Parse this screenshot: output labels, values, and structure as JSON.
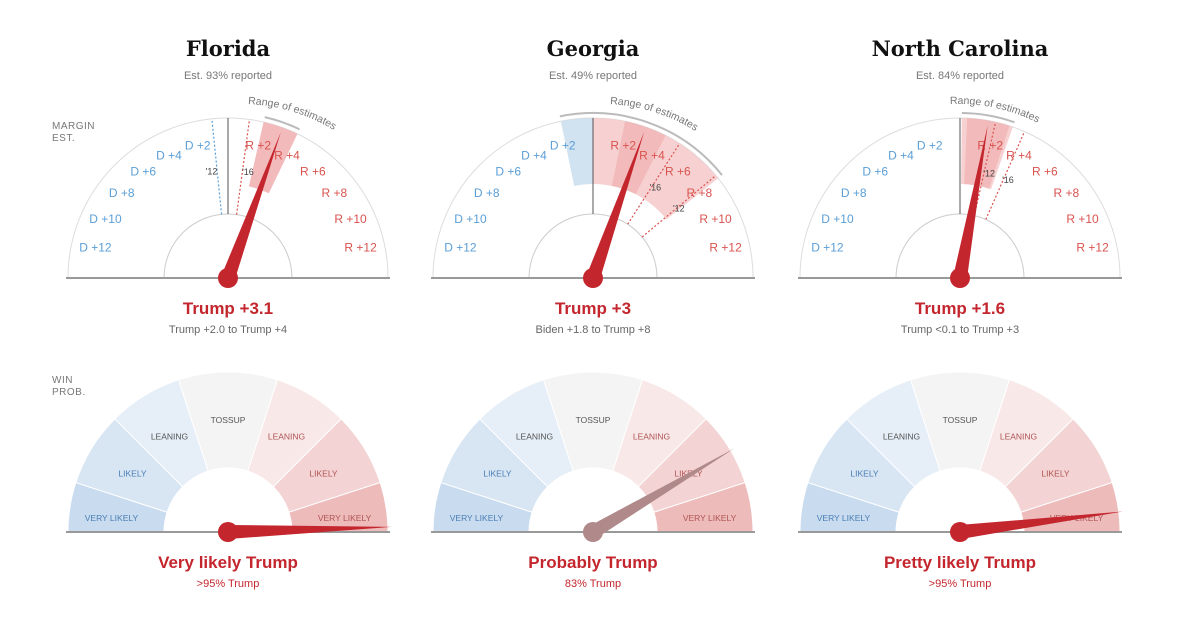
{
  "side_labels": {
    "margin": [
      "MARGIN",
      "EST."
    ],
    "win": [
      "WIN",
      "PROB."
    ]
  },
  "colors": {
    "trump_red": "#c4262e",
    "dem_blue": "#5a9ed6",
    "rep_red": "#d9534f",
    "neutral_needle": "#b08a8a",
    "axis_grey": "#999999"
  },
  "chart_data": [
    {
      "type": "gauge",
      "state": "Florida",
      "reported": "Est. 93% reported",
      "margin": {
        "tick_labels": {
          "dem": [
            "D +2",
            "D +4",
            "D +6",
            "D +8",
            "D +10",
            "D +12"
          ],
          "rep": [
            "R +2",
            "R +4",
            "R +6",
            "R +8",
            "R +10",
            "R +12"
          ]
        },
        "needle_value": 3.1,
        "range": [
          2.0,
          4.0
        ],
        "range_label": "Range of estimates",
        "prior_years": [
          {
            "label": "'12",
            "value": -0.9
          },
          {
            "label": "'16",
            "value": 1.2
          }
        ],
        "headline": "Trump +3.1",
        "subline": "Trump +2.0 to Trump +4"
      },
      "win_prob": {
        "segments": [
          "VERY LIKELY",
          "LIKELY",
          "LEANING",
          "TOSSUP",
          "LEANING",
          "LIKELY",
          "VERY LIKELY"
        ],
        "trump_prob": 0.99,
        "needle_color": "trump_red",
        "headline": "Very likely Trump",
        "subline": ">95% Trump"
      }
    },
    {
      "type": "gauge",
      "state": "Georgia",
      "reported": "Est. 49% reported",
      "margin": {
        "tick_labels": {
          "dem": [
            "D +2",
            "D +4",
            "D +6",
            "D +8",
            "D +10",
            "D +12"
          ],
          "rep": [
            "R +2",
            "R +4",
            "R +6",
            "R +8",
            "R +10",
            "R +12"
          ]
        },
        "needle_value": 3,
        "range": [
          -1.8,
          8.0
        ],
        "range_label": "Range of estimates",
        "prior_years": [
          {
            "label": "'16",
            "value": 5.1
          },
          {
            "label": "'12",
            "value": 7.8
          }
        ],
        "headline": "Trump +3",
        "subline": "Biden +1.8 to Trump +8"
      },
      "win_prob": {
        "segments": [
          "VERY LIKELY",
          "LIKELY",
          "LEANING",
          "TOSSUP",
          "LEANING",
          "LIKELY",
          "VERY LIKELY"
        ],
        "trump_prob": 0.83,
        "needle_color": "neutral_needle",
        "headline": "Probably Trump",
        "subline": "83% Trump"
      }
    },
    {
      "type": "gauge",
      "state": "North Carolina",
      "reported": "Est. 84% reported",
      "margin": {
        "tick_labels": {
          "dem": [
            "D +2",
            "D +4",
            "D +6",
            "D +8",
            "D +10",
            "D +12"
          ],
          "rep": [
            "R +2",
            "R +4",
            "R +6",
            "R +8",
            "R +10",
            "R +12"
          ]
        },
        "needle_value": 1.6,
        "range": [
          0.1,
          3.0
        ],
        "range_label": "Range of estimates",
        "prior_years": [
          {
            "label": "'12",
            "value": 2.0
          },
          {
            "label": "'16",
            "value": 3.7
          }
        ],
        "headline": "Trump +1.6",
        "subline": "Trump <0.1 to Trump +3"
      },
      "win_prob": {
        "segments": [
          "VERY LIKELY",
          "LIKELY",
          "LEANING",
          "TOSSUP",
          "LEANING",
          "LIKELY",
          "VERY LIKELY"
        ],
        "trump_prob": 0.96,
        "needle_color": "trump_red",
        "headline": "Pretty likely Trump",
        "subline": ">95% Trump"
      }
    }
  ]
}
